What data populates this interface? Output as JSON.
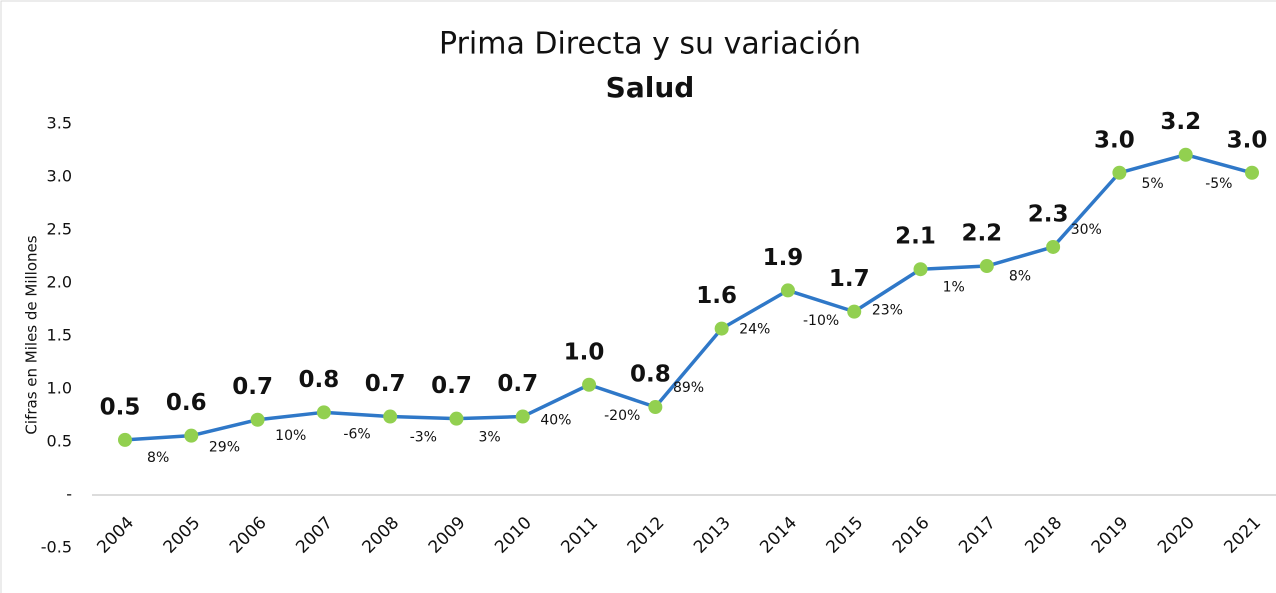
{
  "chart_data": {
    "type": "line",
    "title": "Prima Directa y su variación",
    "subtitle": "Salud",
    "y_label": "Cifras en Miles de Millones",
    "categories": [
      "2004",
      "2005",
      "2006",
      "2007",
      "2008",
      "2009",
      "2010",
      "2011",
      "2012",
      "2013",
      "2014",
      "2015",
      "2016",
      "2017",
      "2018",
      "2019",
      "2020",
      "2021"
    ],
    "values": [
      0.52,
      0.56,
      0.71,
      0.78,
      0.74,
      0.72,
      0.74,
      1.04,
      0.83,
      1.57,
      1.93,
      1.73,
      2.13,
      2.16,
      2.34,
      3.04,
      3.21,
      3.04
    ],
    "value_labels": [
      "0.5",
      "0.6",
      "0.7",
      "0.8",
      "0.7",
      "0.7",
      "0.7",
      "1.0",
      "0.8",
      "1.6",
      "1.9",
      "1.7",
      "2.1",
      "2.2",
      "2.3",
      "3.0",
      "3.2",
      "3.0"
    ],
    "color": "#2f78c8",
    "marker_color": "#92d050",
    "variation": {
      "values": [
        null,
        8,
        29,
        10,
        -6,
        -3,
        3,
        40,
        -20,
        89,
        24,
        -10,
        23,
        1,
        8,
        30,
        5,
        -5
      ],
      "value_labels": [
        null,
        "8%",
        "29%",
        "10%",
        "-6%",
        "-3%",
        "3%",
        "40%",
        "-20%",
        "89%",
        "24%",
        "-10%",
        "23%",
        "1%",
        "8%",
        "30%",
        "5%",
        "-5%"
      ]
    },
    "ylim": [
      -0.5,
      3.5
    ],
    "yticks": [
      -0.5,
      {
        "value": 0,
        "label": "-"
      },
      0.5,
      {
        "value": 1,
        "label": "1.0"
      },
      1.5,
      {
        "value": 2,
        "label": "2.0"
      },
      2.5,
      {
        "value": 3,
        "label": "3.0"
      },
      3.5
    ],
    "grid": false
  }
}
